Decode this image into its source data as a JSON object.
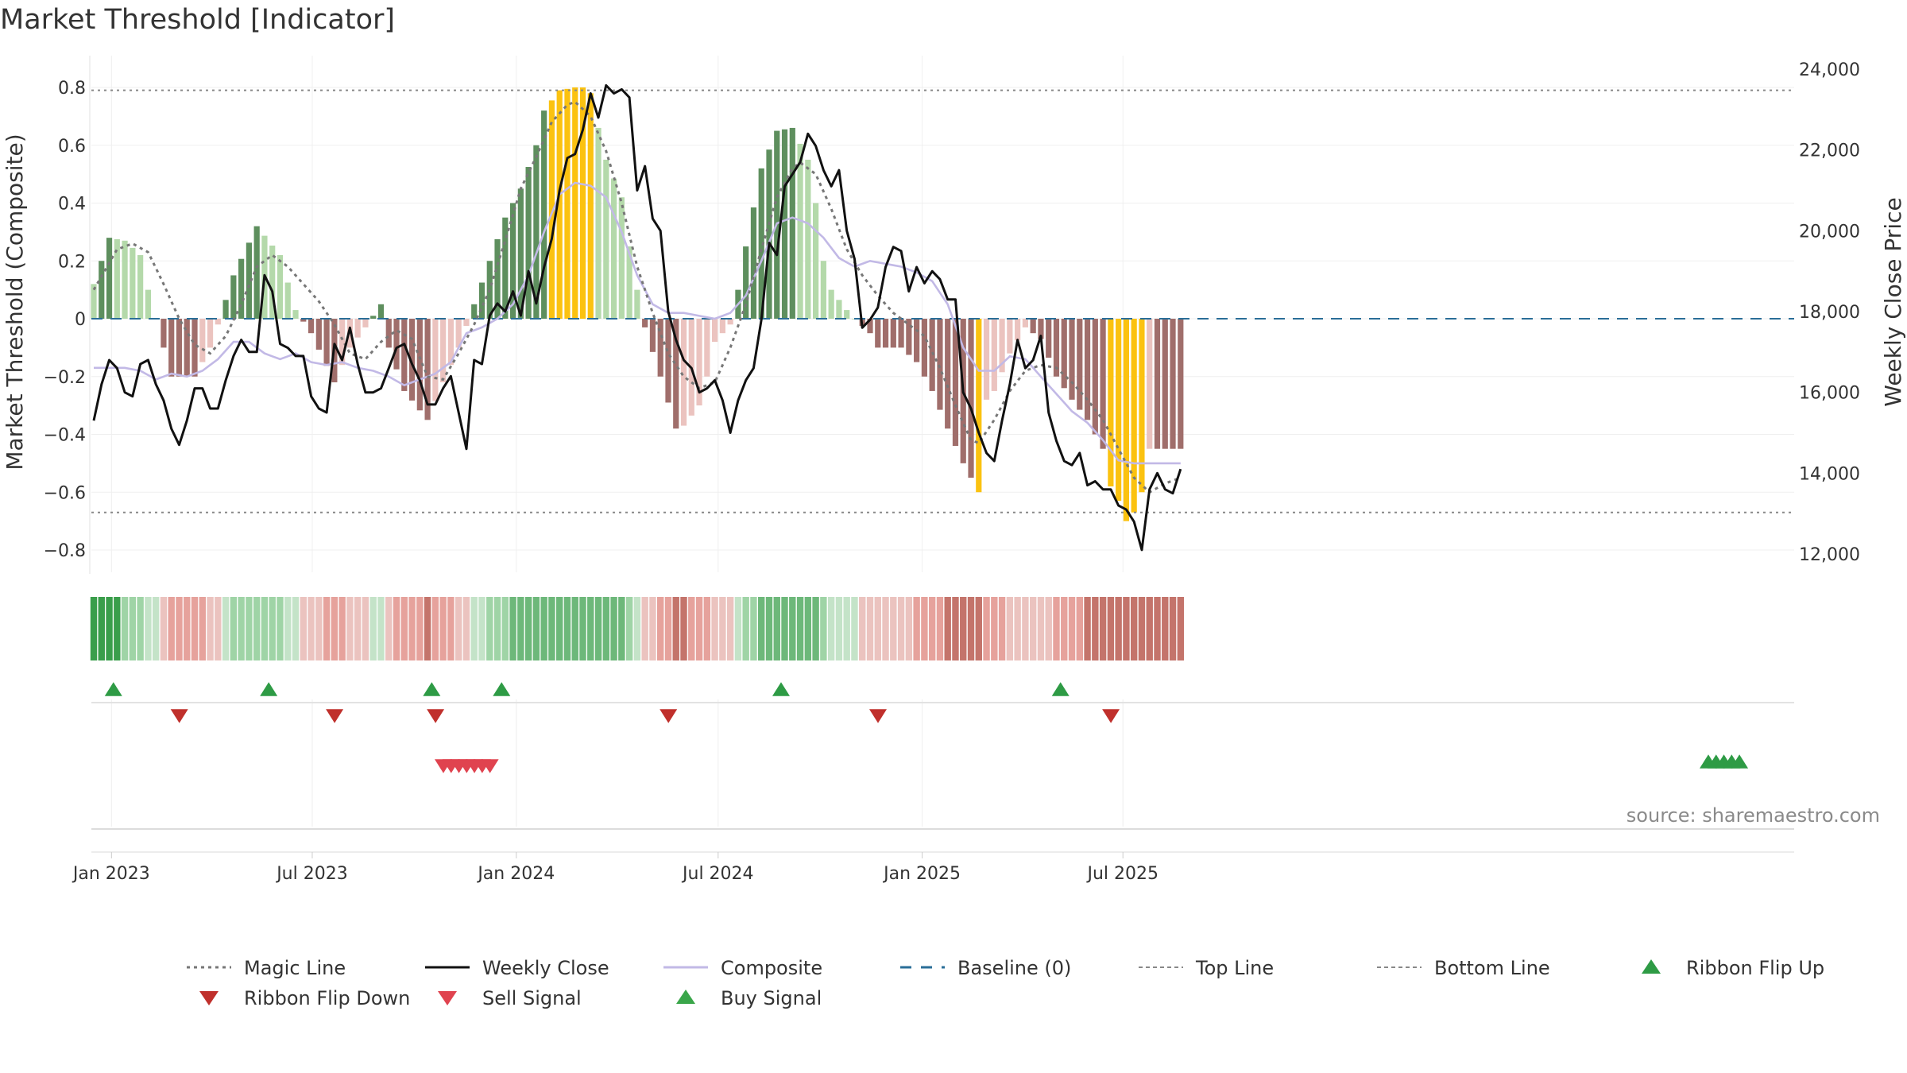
{
  "chart_data": {
    "type": "bar",
    "title": "Market Threshold [Indicator]",
    "ylabel_left": "Market Threshold (Composite)",
    "ylabel_right": "Weekly Close Price",
    "source": "source: sharemaestro.com",
    "x_start": "2022-12-16",
    "x_step_days": 7,
    "y_left_range": [
      -0.88,
      0.85
    ],
    "y_right_range": [
      11500,
      24500
    ],
    "y_left_ticks": [
      {
        "v": 0.8,
        "label": "0.8"
      },
      {
        "v": 0.6,
        "label": "0.6"
      },
      {
        "v": 0.4,
        "label": "0.4"
      },
      {
        "v": 0.2,
        "label": "0.2"
      },
      {
        "v": 0,
        "label": "0"
      },
      {
        "v": -0.2,
        "label": "−0.2"
      },
      {
        "v": -0.4,
        "label": "−0.4"
      },
      {
        "v": -0.6,
        "label": "−0.6"
      },
      {
        "v": -0.8,
        "label": "−0.8"
      }
    ],
    "y_right_ticks": [
      {
        "v": 24000,
        "label": "24,000"
      },
      {
        "v": 22000,
        "label": "22,000"
      },
      {
        "v": 20000,
        "label": "20,000"
      },
      {
        "v": 18000,
        "label": "18,000"
      },
      {
        "v": 16000,
        "label": "16,000"
      },
      {
        "v": 14000,
        "label": "14,000"
      },
      {
        "v": 12000,
        "label": "12,000"
      }
    ],
    "x_ticks": [
      {
        "date": "2023-01-01",
        "label": "Jan 2023"
      },
      {
        "date": "2023-07-01",
        "label": "Jul 2023"
      },
      {
        "date": "2024-01-01",
        "label": "Jan 2024"
      },
      {
        "date": "2024-07-01",
        "label": "Jul 2024"
      },
      {
        "date": "2025-01-01",
        "label": "Jan 2025"
      },
      {
        "date": "2025-07-01",
        "label": "Jul 2025"
      }
    ],
    "top_line": 0.79,
    "bottom_line": -0.67,
    "baseline": 0,
    "colors": {
      "strong_pos": "#5e8f5e",
      "weak_pos": "#b4d9aa",
      "strong_neg": "#a06e6b",
      "weak_neg": "#ebc3bf",
      "extreme": "#fbc210",
      "close": "#111111",
      "composite": "#c2b9e6",
      "magic": "#777777",
      "baseline": "#2a6e98",
      "threshold": "#888888",
      "buy": "#2e9b45",
      "sell": "#d53b3b"
    },
    "composite_key": [
      [
        0,
        0.12
      ],
      [
        2,
        0.28
      ],
      [
        4,
        0.27
      ],
      [
        6,
        0.22
      ],
      [
        7,
        0.1
      ],
      [
        8,
        0.0
      ],
      [
        10,
        -0.2
      ],
      [
        13,
        -0.2
      ],
      [
        15,
        -0.1
      ],
      [
        16,
        -0.02
      ],
      [
        18,
        0.15
      ],
      [
        21,
        0.32
      ],
      [
        24,
        0.22
      ],
      [
        26,
        0.03
      ],
      [
        28,
        -0.05
      ],
      [
        31,
        -0.22
      ],
      [
        33,
        -0.1
      ],
      [
        35,
        -0.03
      ],
      [
        37,
        0.05
      ],
      [
        38,
        -0.1
      ],
      [
        40,
        -0.25
      ],
      [
        43,
        -0.35
      ],
      [
        45,
        -0.22
      ],
      [
        47,
        -0.1
      ],
      [
        49,
        0.05
      ],
      [
        51,
        0.2
      ],
      [
        53,
        0.35
      ],
      [
        55,
        0.45
      ],
      [
        57,
        0.6
      ],
      [
        58,
        0.72
      ],
      [
        60,
        0.79
      ],
      [
        62,
        0.8
      ],
      [
        63,
        0.8
      ],
      [
        64,
        0.78
      ],
      [
        65,
        0.66
      ],
      [
        66,
        0.55
      ],
      [
        68,
        0.42
      ],
      [
        69,
        0.25
      ],
      [
        70,
        0.1
      ],
      [
        71,
        -0.03
      ],
      [
        73,
        -0.2
      ],
      [
        75,
        -0.38
      ],
      [
        76,
        -0.37
      ],
      [
        78,
        -0.3
      ],
      [
        79,
        -0.2
      ],
      [
        80,
        -0.08
      ],
      [
        82,
        -0.02
      ],
      [
        83,
        0.1
      ],
      [
        84,
        0.25
      ],
      [
        86,
        0.52
      ],
      [
        88,
        0.65
      ],
      [
        90,
        0.66
      ],
      [
        92,
        0.55
      ],
      [
        93,
        0.4
      ],
      [
        94,
        0.2
      ],
      [
        95,
        0.1
      ],
      [
        97,
        0.03
      ],
      [
        98,
        0.0
      ],
      [
        100,
        -0.05
      ],
      [
        101,
        -0.1
      ],
      [
        104,
        -0.1
      ],
      [
        106,
        -0.15
      ],
      [
        108,
        -0.25
      ],
      [
        110,
        -0.38
      ],
      [
        112,
        -0.5
      ],
      [
        113,
        -0.55
      ],
      [
        114,
        -0.6
      ],
      [
        115,
        -0.28
      ],
      [
        116,
        -0.25
      ],
      [
        118,
        -0.12
      ],
      [
        120,
        -0.03
      ],
      [
        122,
        -0.07
      ],
      [
        124,
        -0.2
      ],
      [
        126,
        -0.28
      ],
      [
        128,
        -0.35
      ],
      [
        130,
        -0.45
      ],
      [
        131,
        -0.58
      ],
      [
        132,
        -0.63
      ],
      [
        133,
        -0.7
      ],
      [
        134,
        -0.67
      ],
      [
        135,
        -0.6
      ],
      [
        136,
        -0.45
      ]
    ],
    "close_key": [
      [
        0,
        15300
      ],
      [
        1,
        16200
      ],
      [
        2,
        16800
      ],
      [
        3,
        16600
      ],
      [
        4,
        16000
      ],
      [
        5,
        15900
      ],
      [
        6,
        16700
      ],
      [
        7,
        16800
      ],
      [
        8,
        16200
      ],
      [
        9,
        15800
      ],
      [
        10,
        15100
      ],
      [
        11,
        14700
      ],
      [
        12,
        15300
      ],
      [
        13,
        16100
      ],
      [
        14,
        16100
      ],
      [
        15,
        15600
      ],
      [
        16,
        15600
      ],
      [
        17,
        16300
      ],
      [
        18,
        16900
      ],
      [
        19,
        17300
      ],
      [
        20,
        17000
      ],
      [
        21,
        17000
      ],
      [
        22,
        18900
      ],
      [
        23,
        18500
      ],
      [
        24,
        17200
      ],
      [
        25,
        17100
      ],
      [
        26,
        16900
      ],
      [
        27,
        16900
      ],
      [
        28,
        15900
      ],
      [
        29,
        15600
      ],
      [
        30,
        15500
      ],
      [
        31,
        17200
      ],
      [
        32,
        16800
      ],
      [
        33,
        17600
      ],
      [
        34,
        16700
      ],
      [
        35,
        16000
      ],
      [
        36,
        16000
      ],
      [
        37,
        16100
      ],
      [
        38,
        16600
      ],
      [
        39,
        17100
      ],
      [
        40,
        17200
      ],
      [
        41,
        16700
      ],
      [
        42,
        16300
      ],
      [
        43,
        15700
      ],
      [
        44,
        15700
      ],
      [
        45,
        16100
      ],
      [
        46,
        16400
      ],
      [
        47,
        15500
      ],
      [
        48,
        14600
      ],
      [
        49,
        16800
      ],
      [
        50,
        16700
      ],
      [
        51,
        17900
      ],
      [
        52,
        18200
      ],
      [
        53,
        18000
      ],
      [
        54,
        18500
      ],
      [
        55,
        17900
      ],
      [
        56,
        19000
      ],
      [
        57,
        18200
      ],
      [
        58,
        19100
      ],
      [
        59,
        19800
      ],
      [
        60,
        21000
      ],
      [
        61,
        21800
      ],
      [
        62,
        21900
      ],
      [
        63,
        22500
      ],
      [
        64,
        23400
      ],
      [
        65,
        22800
      ],
      [
        66,
        23600
      ],
      [
        67,
        23400
      ],
      [
        68,
        23500
      ],
      [
        69,
        23300
      ],
      [
        70,
        21000
      ],
      [
        71,
        21600
      ],
      [
        72,
        20300
      ],
      [
        73,
        20000
      ],
      [
        74,
        18000
      ],
      [
        75,
        17300
      ],
      [
        76,
        16800
      ],
      [
        77,
        16600
      ],
      [
        78,
        16000
      ],
      [
        79,
        16100
      ],
      [
        80,
        16300
      ],
      [
        81,
        15800
      ],
      [
        82,
        15000
      ],
      [
        83,
        15800
      ],
      [
        84,
        16300
      ],
      [
        85,
        16600
      ],
      [
        86,
        17800
      ],
      [
        87,
        19700
      ],
      [
        88,
        19400
      ],
      [
        89,
        21100
      ],
      [
        90,
        21400
      ],
      [
        91,
        21700
      ],
      [
        92,
        22400
      ],
      [
        93,
        22100
      ],
      [
        94,
        21500
      ],
      [
        95,
        21100
      ],
      [
        96,
        21500
      ],
      [
        97,
        20000
      ],
      [
        98,
        19300
      ],
      [
        99,
        17600
      ],
      [
        100,
        17800
      ],
      [
        101,
        18100
      ],
      [
        102,
        19100
      ],
      [
        103,
        19600
      ],
      [
        104,
        19500
      ],
      [
        105,
        18500
      ],
      [
        106,
        19100
      ],
      [
        107,
        18700
      ],
      [
        108,
        19000
      ],
      [
        109,
        18800
      ],
      [
        110,
        18300
      ],
      [
        111,
        18300
      ],
      [
        112,
        16000
      ],
      [
        113,
        15600
      ],
      [
        114,
        15000
      ],
      [
        115,
        14500
      ],
      [
        116,
        14300
      ],
      [
        117,
        15300
      ],
      [
        118,
        16200
      ],
      [
        119,
        17300
      ],
      [
        120,
        16600
      ],
      [
        121,
        16800
      ],
      [
        122,
        17400
      ],
      [
        123,
        15500
      ],
      [
        124,
        14800
      ],
      [
        125,
        14300
      ],
      [
        126,
        14200
      ],
      [
        127,
        14500
      ],
      [
        128,
        13700
      ],
      [
        129,
        13800
      ],
      [
        130,
        13600
      ],
      [
        131,
        13600
      ],
      [
        132,
        13200
      ],
      [
        133,
        13100
      ],
      [
        134,
        12800
      ],
      [
        135,
        12100
      ],
      [
        136,
        13600
      ],
      [
        137,
        14000
      ],
      [
        138,
        13600
      ],
      [
        139,
        13500
      ],
      [
        140,
        14100
      ]
    ],
    "magic_key": [
      [
        0,
        0.1
      ],
      [
        3,
        0.24
      ],
      [
        5,
        0.26
      ],
      [
        7,
        0.23
      ],
      [
        9,
        0.12
      ],
      [
        11,
        0.0
      ],
      [
        13,
        -0.09
      ],
      [
        15,
        -0.12
      ],
      [
        17,
        -0.06
      ],
      [
        19,
        0.05
      ],
      [
        21,
        0.18
      ],
      [
        23,
        0.22
      ],
      [
        25,
        0.18
      ],
      [
        27,
        0.12
      ],
      [
        29,
        0.06
      ],
      [
        31,
        -0.02
      ],
      [
        33,
        -0.12
      ],
      [
        35,
        -0.14
      ],
      [
        37,
        -0.08
      ],
      [
        39,
        -0.04
      ],
      [
        41,
        -0.07
      ],
      [
        43,
        -0.2
      ],
      [
        45,
        -0.21
      ],
      [
        47,
        -0.12
      ],
      [
        49,
        -0.02
      ],
      [
        51,
        0.1
      ],
      [
        53,
        0.27
      ],
      [
        55,
        0.45
      ],
      [
        57,
        0.56
      ],
      [
        59,
        0.68
      ],
      [
        61,
        0.74
      ],
      [
        62,
        0.75
      ],
      [
        64,
        0.7
      ],
      [
        66,
        0.58
      ],
      [
        68,
        0.4
      ],
      [
        70,
        0.18
      ],
      [
        72,
        0.02
      ],
      [
        74,
        -0.12
      ],
      [
        76,
        -0.2
      ],
      [
        78,
        -0.24
      ],
      [
        80,
        -0.22
      ],
      [
        82,
        -0.1
      ],
      [
        84,
        0.05
      ],
      [
        86,
        0.24
      ],
      [
        88,
        0.42
      ],
      [
        90,
        0.52
      ],
      [
        91,
        0.54
      ],
      [
        93,
        0.5
      ],
      [
        95,
        0.38
      ],
      [
        97,
        0.24
      ],
      [
        99,
        0.15
      ],
      [
        101,
        0.08
      ],
      [
        103,
        0.02
      ],
      [
        105,
        -0.02
      ],
      [
        107,
        -0.06
      ],
      [
        109,
        -0.17
      ],
      [
        111,
        -0.3
      ],
      [
        113,
        -0.42
      ],
      [
        114,
        -0.43
      ],
      [
        116,
        -0.35
      ],
      [
        118,
        -0.25
      ],
      [
        120,
        -0.18
      ],
      [
        122,
        -0.16
      ],
      [
        124,
        -0.17
      ],
      [
        126,
        -0.22
      ],
      [
        128,
        -0.28
      ],
      [
        130,
        -0.35
      ],
      [
        132,
        -0.45
      ],
      [
        134,
        -0.55
      ],
      [
        136,
        -0.6
      ],
      [
        138,
        -0.57
      ],
      [
        140,
        -0.55
      ]
    ],
    "smooth_key": [
      [
        0,
        -0.17
      ],
      [
        4,
        -0.17
      ],
      [
        6,
        -0.18
      ],
      [
        8,
        -0.21
      ],
      [
        10,
        -0.19
      ],
      [
        12,
        -0.2
      ],
      [
        14,
        -0.18
      ],
      [
        16,
        -0.14
      ],
      [
        18,
        -0.08
      ],
      [
        20,
        -0.08
      ],
      [
        22,
        -0.12
      ],
      [
        24,
        -0.14
      ],
      [
        26,
        -0.12
      ],
      [
        28,
        -0.15
      ],
      [
        30,
        -0.16
      ],
      [
        32,
        -0.15
      ],
      [
        34,
        -0.17
      ],
      [
        36,
        -0.18
      ],
      [
        38,
        -0.2
      ],
      [
        40,
        -0.23
      ],
      [
        42,
        -0.21
      ],
      [
        44,
        -0.19
      ],
      [
        46,
        -0.15
      ],
      [
        48,
        -0.05
      ],
      [
        50,
        -0.03
      ],
      [
        52,
        0.0
      ],
      [
        54,
        0.05
      ],
      [
        56,
        0.15
      ],
      [
        58,
        0.3
      ],
      [
        60,
        0.43
      ],
      [
        62,
        0.47
      ],
      [
        64,
        0.46
      ],
      [
        66,
        0.42
      ],
      [
        68,
        0.3
      ],
      [
        70,
        0.15
      ],
      [
        72,
        0.05
      ],
      [
        74,
        0.02
      ],
      [
        76,
        0.02
      ],
      [
        78,
        0.01
      ],
      [
        80,
        0.0
      ],
      [
        82,
        0.02
      ],
      [
        84,
        0.08
      ],
      [
        86,
        0.2
      ],
      [
        88,
        0.33
      ],
      [
        90,
        0.35
      ],
      [
        92,
        0.33
      ],
      [
        94,
        0.28
      ],
      [
        96,
        0.21
      ],
      [
        98,
        0.18
      ],
      [
        100,
        0.2
      ],
      [
        102,
        0.19
      ],
      [
        104,
        0.18
      ],
      [
        106,
        0.16
      ],
      [
        108,
        0.13
      ],
      [
        110,
        0.05
      ],
      [
        112,
        -0.1
      ],
      [
        114,
        -0.18
      ],
      [
        116,
        -0.18
      ],
      [
        118,
        -0.13
      ],
      [
        120,
        -0.14
      ],
      [
        122,
        -0.2
      ],
      [
        124,
        -0.26
      ],
      [
        126,
        -0.32
      ],
      [
        128,
        -0.36
      ],
      [
        130,
        -0.42
      ],
      [
        132,
        -0.49
      ],
      [
        134,
        -0.5
      ],
      [
        136,
        -0.5
      ],
      [
        138,
        -0.5
      ],
      [
        140,
        -0.5
      ]
    ],
    "ribbon_colors": [
      "#e6b0ab",
      "#c4746b",
      "#e6a29c",
      "#c4746b",
      "#e6d0ce",
      "#6db87a",
      "#9fd4a6",
      "#c4e3c8",
      "#3a9e4b"
    ],
    "ribbon_flip_up": [
      1,
      21,
      42,
      51,
      87,
      123
    ],
    "ribbon_flip_down": [
      10,
      30,
      43,
      73,
      100,
      130
    ],
    "sell_signal": [
      64,
      65,
      66,
      67,
      68,
      69,
      70
    ],
    "buy_signal": [
      136,
      137,
      138,
      139,
      140
    ],
    "legend": [
      {
        "label": "Magic Line",
        "kind": "dotted",
        "color": "#777777"
      },
      {
        "label": "Weekly Close",
        "kind": "line",
        "color": "#111111"
      },
      {
        "label": "Composite",
        "kind": "line",
        "color": "#c2b9e6"
      },
      {
        "label": "Baseline (0)",
        "kind": "dashed",
        "color": "#2a6e98"
      },
      {
        "label": "Top Line",
        "kind": "thin-dashed",
        "color": "#888888"
      },
      {
        "label": "Bottom Line",
        "kind": "thin-dashed",
        "color": "#888888"
      },
      {
        "label": "Ribbon Flip Up",
        "kind": "tri-up",
        "color": "#2e9b45"
      },
      {
        "label": "Ribbon Flip Down",
        "kind": "tri-down",
        "color": "#c0302c"
      },
      {
        "label": "Sell Signal",
        "kind": "tri-down",
        "color": "#e0434f"
      },
      {
        "label": "Buy Signal",
        "kind": "tri-up",
        "color": "#3aa64a"
      }
    ]
  }
}
